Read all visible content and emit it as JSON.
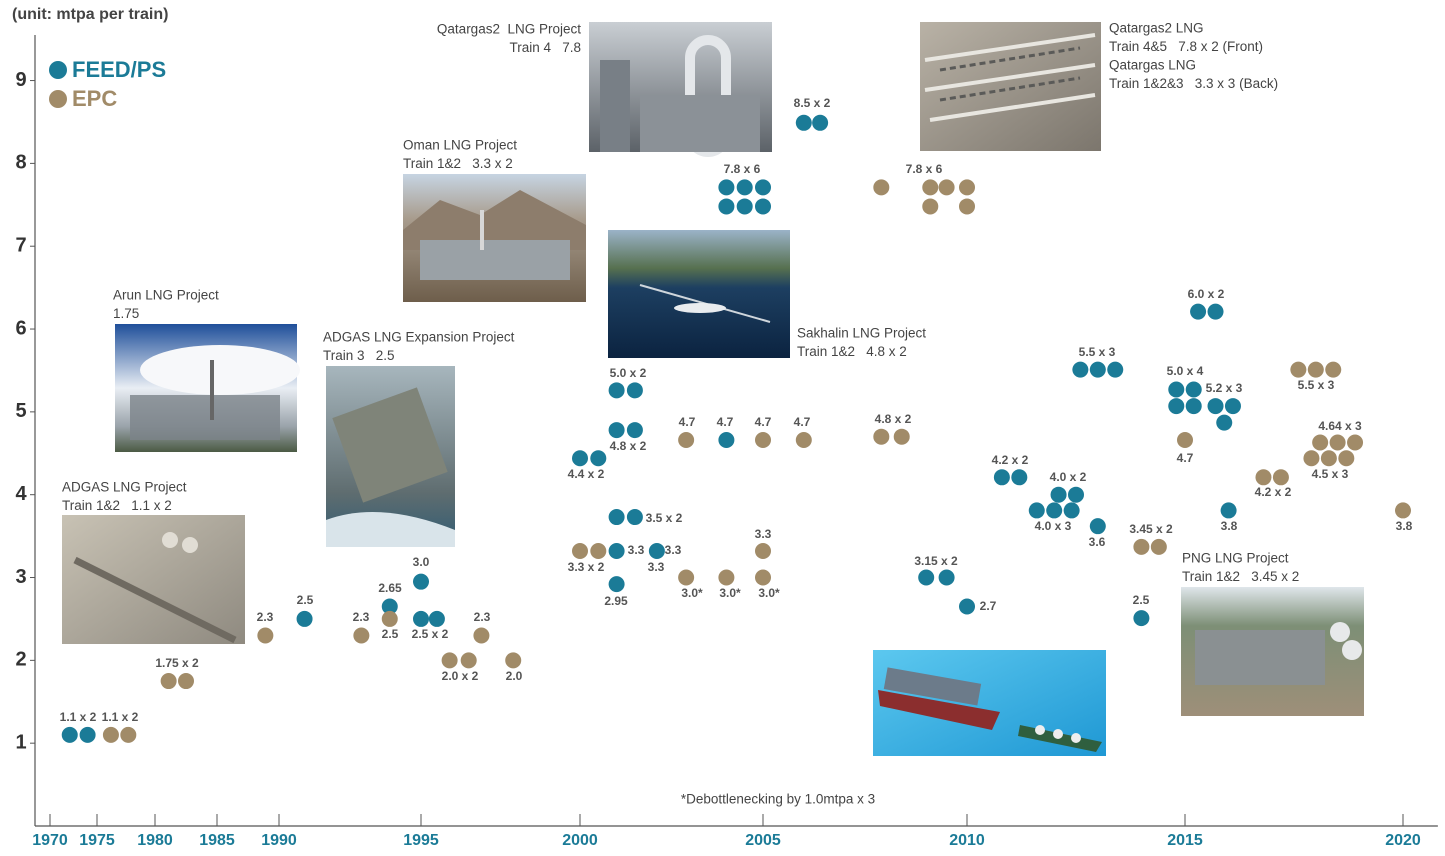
{
  "chart_data": {
    "type": "scatter",
    "title": "(unit: mtpa per train)",
    "xlim": [
      1968.5,
      2020.8
    ],
    "ylim": [
      0,
      9.55
    ],
    "xticks": [
      1970,
      1975,
      1980,
      1985,
      1990,
      1995,
      2000,
      2005,
      2010,
      2015,
      2020
    ],
    "yticks": [
      1,
      2,
      3,
      4,
      5,
      6,
      7,
      8,
      9
    ],
    "grid": false,
    "legend": "upper-left",
    "series": [
      {
        "name": "FEED/PS",
        "color": "#1b7b97",
        "x": [
          1972.1,
          1974.0,
          1990.9,
          1993.9,
          1995.0,
          1995.0,
          1995.5,
          2000.0,
          2000.5,
          2001.0,
          2001.5,
          2001.0,
          2001.5,
          2001.0,
          2001.5,
          2001.0,
          2002.1,
          2001.0,
          2004.0,
          2004.0,
          2004.5,
          2005.0,
          2004.0,
          2004.5,
          2005.0,
          2006.0,
          2006.4,
          2009.0,
          2009.5,
          2010.0,
          2010.8,
          2011.2,
          2012.1,
          2012.5,
          2011.6,
          2012.0,
          2012.4,
          2013.0,
          2012.6,
          2013.0,
          2013.4,
          2014.0,
          2015.3,
          2015.7,
          2014.8,
          2015.2,
          2014.8,
          2015.2,
          2015.7,
          2016.1,
          2015.9,
          2016.0
        ],
        "values": [
          1.1,
          1.1,
          2.5,
          2.65,
          2.95,
          2.5,
          2.5,
          4.44,
          4.44,
          5.26,
          5.26,
          4.78,
          4.78,
          3.73,
          3.73,
          3.32,
          3.32,
          2.92,
          4.66,
          7.71,
          7.71,
          7.71,
          7.48,
          7.48,
          7.48,
          8.49,
          8.49,
          3.0,
          3.0,
          2.65,
          4.21,
          4.21,
          4.0,
          4.0,
          3.81,
          3.81,
          3.81,
          3.62,
          5.51,
          5.51,
          5.51,
          2.51,
          6.21,
          6.21,
          5.27,
          5.27,
          5.07,
          5.07,
          5.07,
          5.07,
          4.87,
          3.81
        ]
      },
      {
        "name": "EPC",
        "color": "#a18b68",
        "x": [
          1976.2,
          1977.7,
          1981.1,
          1982.5,
          1988.9,
          1992.9,
          1993.9,
          1995.9,
          1996.5,
          1996.9,
          1997.9,
          2000.0,
          2000.5,
          2002.9,
          2005.0,
          2006.0,
          2002.9,
          2004.0,
          2005.0,
          2005.0,
          2007.9,
          2009.1,
          2009.5,
          2010.0,
          2009.1,
          2010.0,
          2007.9,
          2008.4,
          2014.0,
          2014.4,
          2015.0,
          2016.8,
          2017.2,
          2017.6,
          2018.0,
          2018.4,
          2018.1,
          2018.5,
          2018.9,
          2017.9,
          2018.3,
          2018.7,
          2020.0
        ],
        "values": [
          1.1,
          1.1,
          1.75,
          1.75,
          2.3,
          2.3,
          2.5,
          2.0,
          2.0,
          2.3,
          2.0,
          3.32,
          3.32,
          4.66,
          4.66,
          4.66,
          3.0,
          3.0,
          3.0,
          3.32,
          7.71,
          7.71,
          7.71,
          7.71,
          7.48,
          7.48,
          4.7,
          4.7,
          3.37,
          3.37,
          4.66,
          4.21,
          4.21,
          5.51,
          5.51,
          5.51,
          4.63,
          4.63,
          4.63,
          4.44,
          4.44,
          4.44,
          3.81
        ]
      }
    ],
    "annotations": [
      "1.1 x 2",
      "1.1 x 2",
      "1.75 x 2",
      "2.3",
      "2.5",
      "2.3",
      "2.65",
      "2.5",
      "3.0",
      "2.5 x 2",
      "2.3",
      "2.0 x 2",
      "2.0",
      "4.4 x 2",
      "3.3 x 2",
      "5.0 x 2",
      "4.8 x 2",
      "3.5 x 2",
      "3.3",
      "3.3",
      "3.3",
      "2.95",
      "4.7",
      "4.7",
      "4.7",
      "4.7",
      "3.0*",
      "3.0*",
      "3.0*",
      "3.3",
      "7.8 x 6",
      "8.5 x 2",
      "7.8 x 6",
      "4.8 x 2",
      "3.15 x 2",
      "2.7",
      "4.2 x 2",
      "4.0 x 2",
      "4.0 x 3",
      "3.6",
      "5.5 x 3",
      "3.45 x 2",
      "2.5",
      "4.7",
      "6.0 x 2",
      "5.0 x 4",
      "5.2 x 3",
      "3.8",
      "4.2 x 2",
      "5.5 x 3",
      "4.64 x 3",
      "4.5 x 3",
      "3.8"
    ],
    "footnote": "*Debottlenecking by 1.0mtpa x 3"
  },
  "photo_captions": [
    [
      "Qatargas2  LNG Project",
      "Train 4   7.8"
    ],
    [
      "Qatargas2 LNG",
      "Train 4&5   7.8 x 2 (Front)",
      "Qatargas LNG",
      "Train 1&2&3   3.3 x 3 (Back)"
    ],
    [
      "Oman LNG Project",
      "Train 1&2   3.3 x 2"
    ],
    [
      "Sakhalin LNG Project",
      "Train 1&2   4.8 x 2"
    ],
    [
      "Arun LNG Project",
      "1.75"
    ],
    [
      "ADGAS LNG Expansion Project",
      "Train 3   2.5"
    ],
    [
      "ADGAS LNG Project",
      "Train 1&2   1.1 x 2"
    ],
    [
      "PNG LNG Project",
      "Train 1&2   3.45 x 2"
    ]
  ]
}
